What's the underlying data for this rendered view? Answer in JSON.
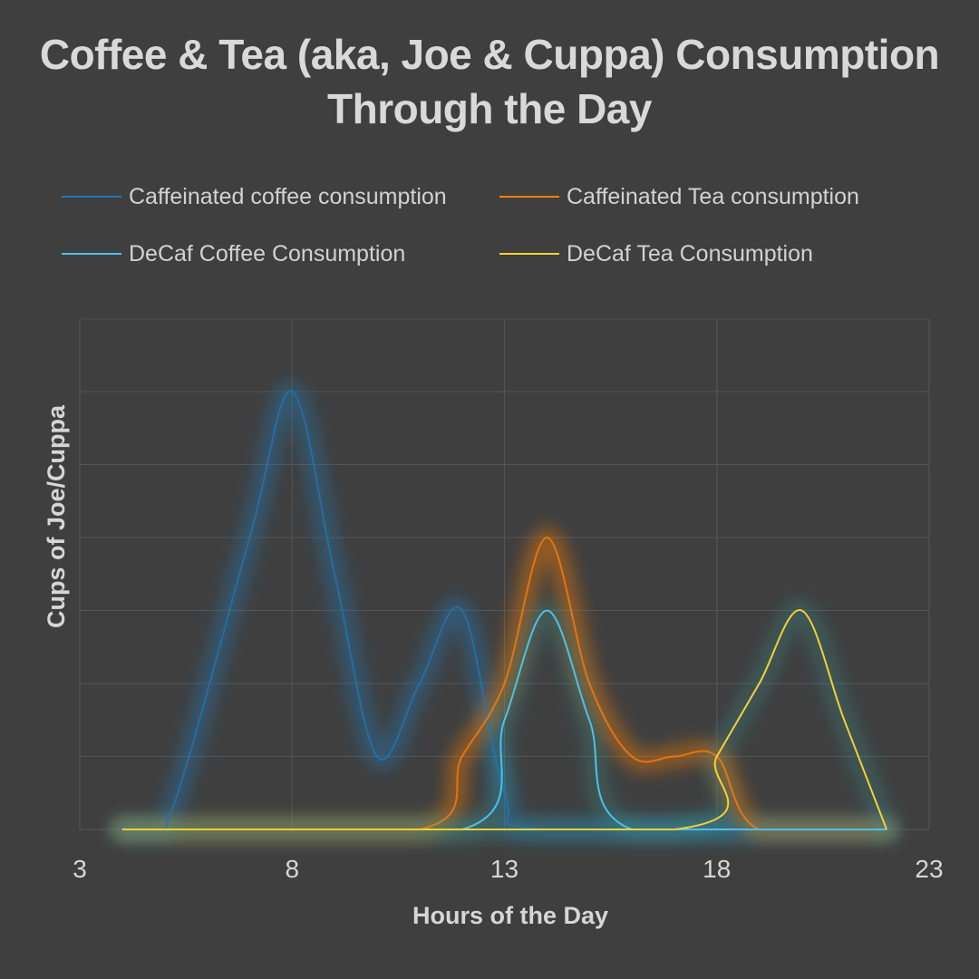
{
  "chart_data": {
    "type": "line",
    "title_lines": [
      "Coffee & Tea (aka, Joe & Cuppa) Consumption",
      "Through the Day"
    ],
    "xlabel": "Hours of the Day",
    "ylabel": "Cups of Joe/Cuppa",
    "xlim": [
      3,
      23
    ],
    "ylim": [
      0,
      6
    ],
    "x_ticks": [
      3,
      8,
      13,
      18,
      23
    ],
    "grid": true,
    "y_tick_labels_shown": false,
    "legend_position": "top",
    "series": [
      {
        "name": "Caffeinated coffee consumption",
        "color": "#1f77b4",
        "glow": true,
        "x": [
          4,
          5,
          7,
          8,
          9,
          10,
          11,
          12,
          13,
          14,
          22
        ],
        "y": [
          0,
          0,
          4,
          6,
          3.5,
          1,
          2,
          3,
          0.5,
          0,
          0
        ]
      },
      {
        "name": "Caffeinated Tea consumption",
        "color": "#ff7f0e",
        "glow": true,
        "x": [
          4,
          11,
          12,
          13,
          14,
          15,
          16,
          17,
          18,
          19,
          22
        ],
        "y": [
          0,
          0,
          1,
          2,
          4,
          2,
          1,
          1,
          1,
          0,
          0
        ]
      },
      {
        "name": "DeCaf Coffee Consumption",
        "color": "#4fc0e8",
        "glow": false,
        "x": [
          4,
          12,
          13,
          14,
          15,
          16,
          22
        ],
        "y": [
          0,
          0,
          1.5,
          3,
          1.5,
          0,
          0
        ]
      },
      {
        "name": "DeCaf Tea Consumption",
        "color": "#f5d033",
        "glow": false,
        "x": [
          4,
          17,
          18,
          19,
          20,
          21,
          22
        ],
        "y": [
          0,
          0,
          1,
          2,
          3,
          1.5,
          0
        ]
      }
    ]
  }
}
